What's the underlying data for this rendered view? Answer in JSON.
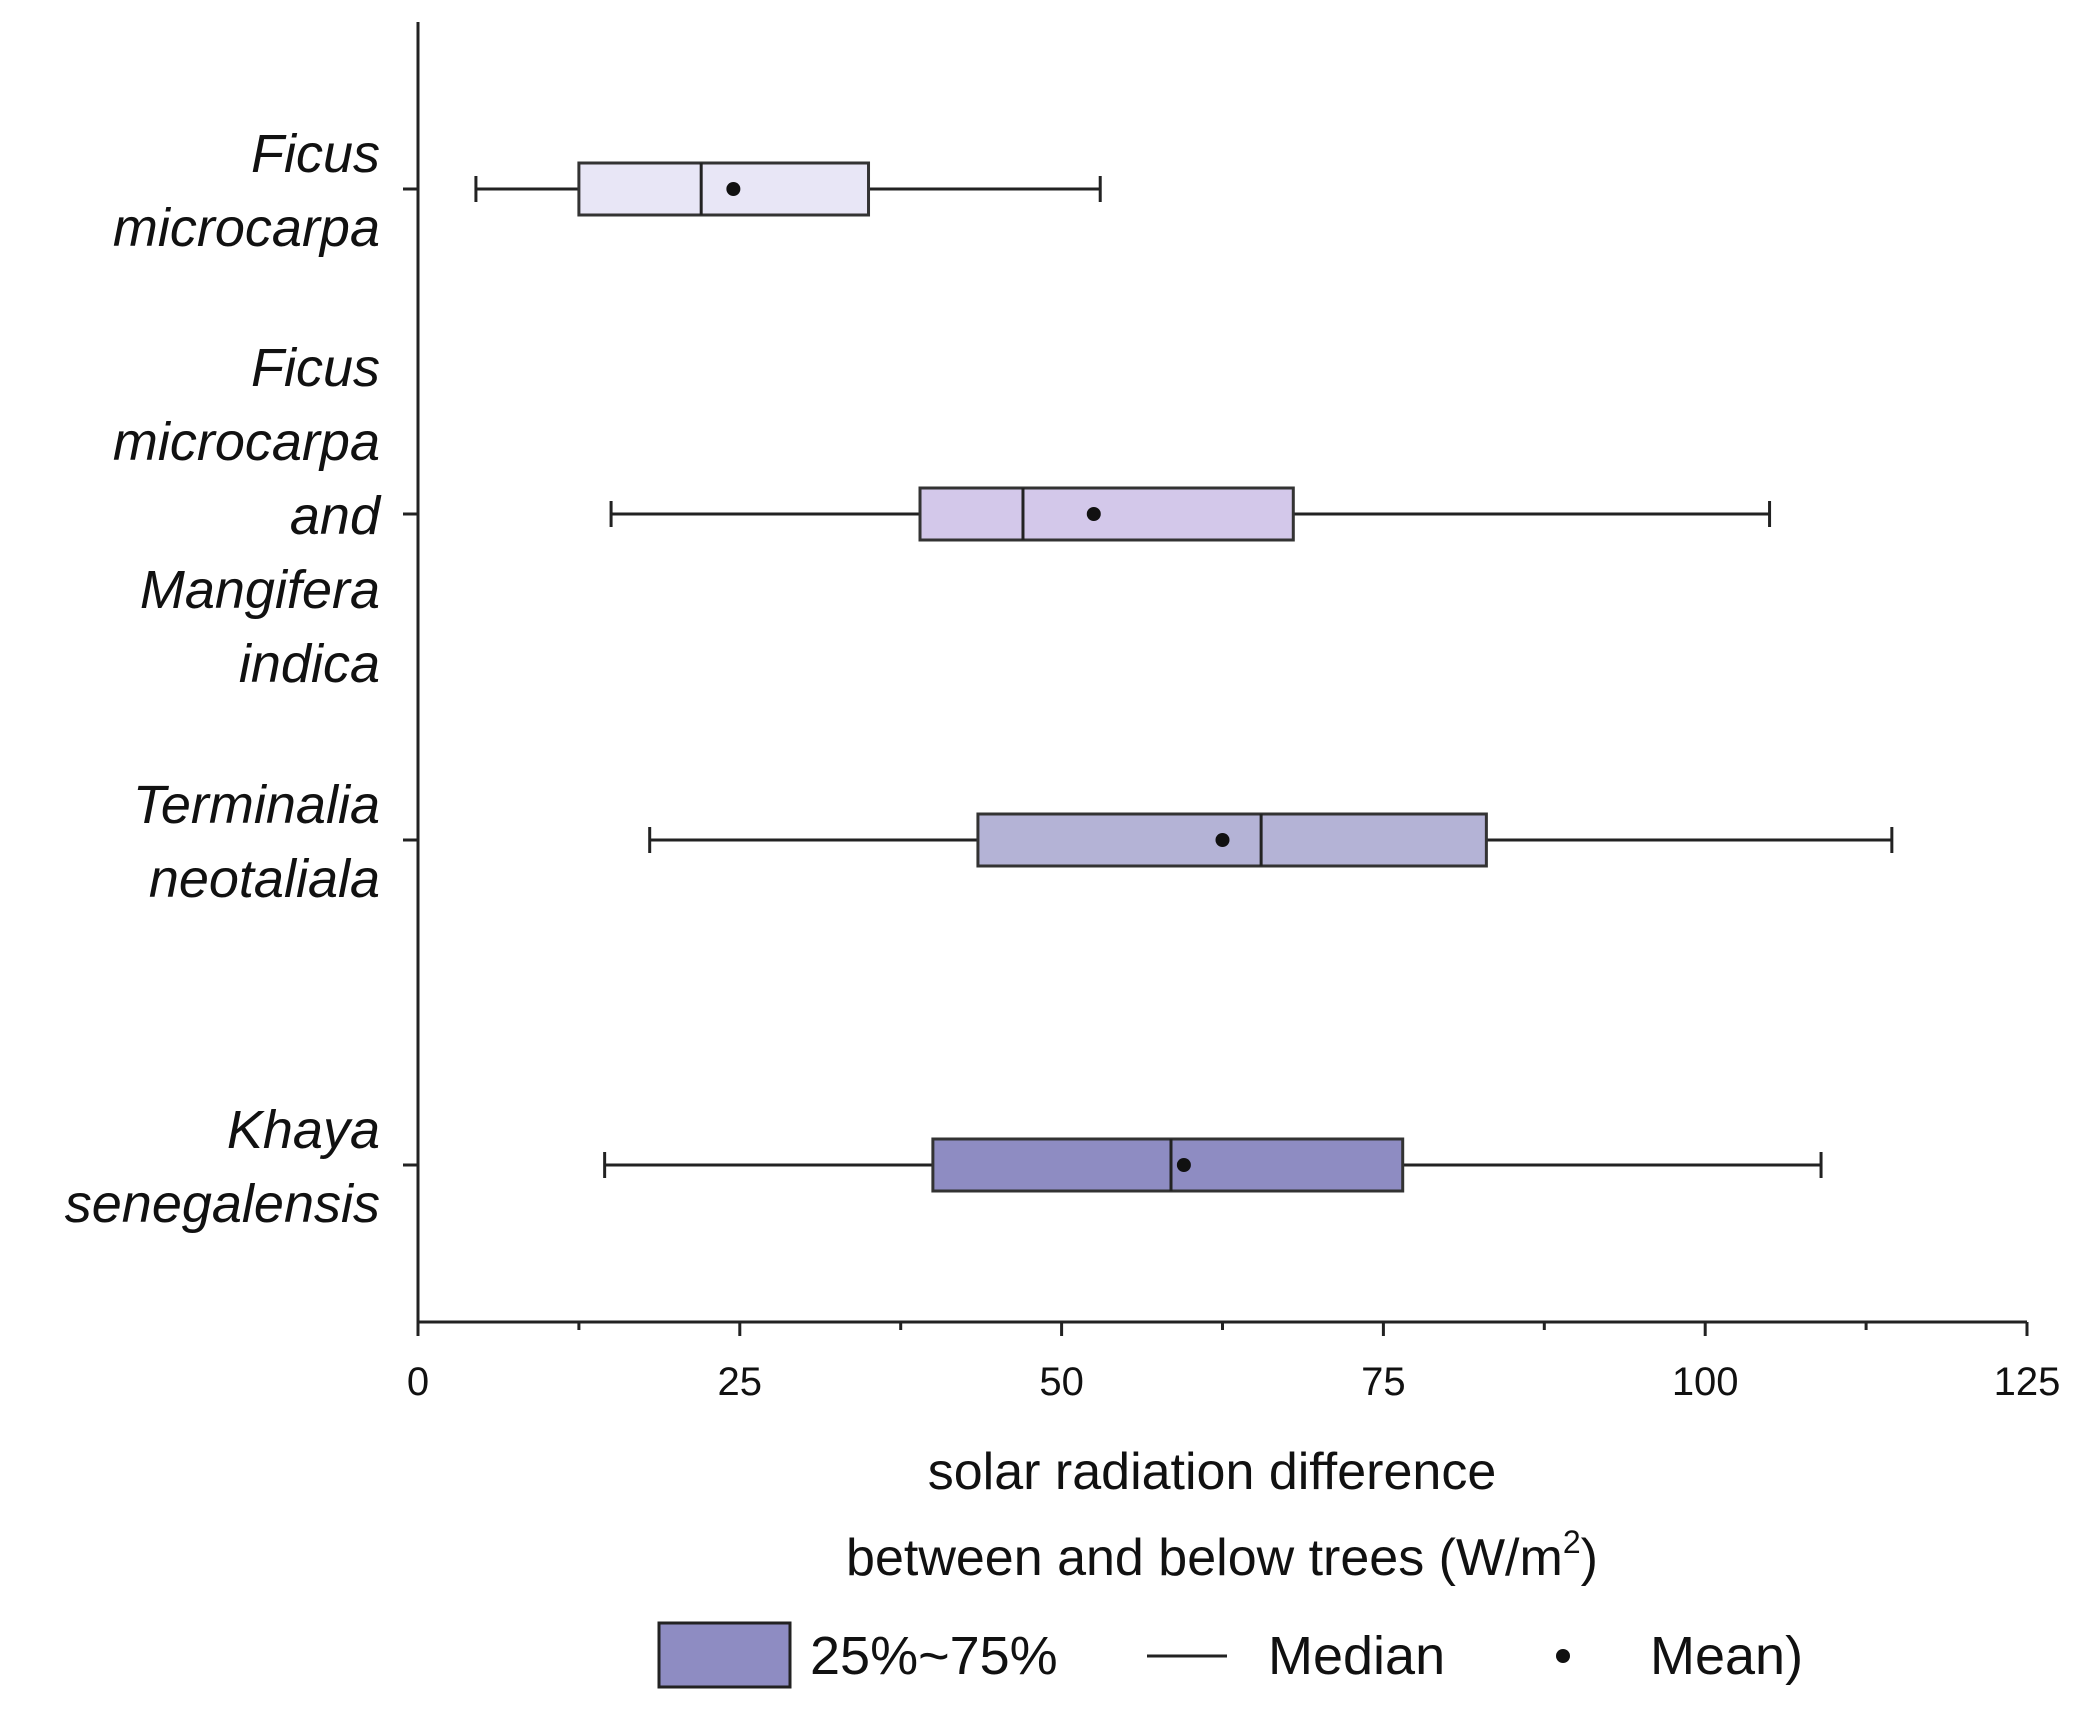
{
  "chart_data": {
    "type": "boxplot",
    "orientation": "horizontal",
    "xlabel_line1": "solar radiation difference",
    "xlabel_line2_prefix": "between and below trees (W/m",
    "xlabel_line2_sup": "2",
    "xlabel_line2_suffix": ")",
    "xlim": [
      0,
      125
    ],
    "xticks": [
      0,
      25,
      50,
      75,
      100,
      125
    ],
    "xtick_labels": [
      "0",
      "25",
      "50",
      "75",
      "100",
      "125"
    ],
    "minor_xticks": [
      12.5,
      37.5,
      62.5,
      87.5,
      112.5
    ],
    "categories": [
      {
        "lines": [
          "Ficus",
          "microcarpa"
        ],
        "whisker_low": 4.5,
        "q1": 12.5,
        "median": 22,
        "q3": 35,
        "whisker_high": 53,
        "mean": 24.5,
        "fill": "#e8e6f6"
      },
      {
        "lines": [
          "Ficus",
          "microcarpa",
          "and",
          "Mangifera",
          "indica"
        ],
        "whisker_low": 15,
        "q1": 39,
        "median": 47,
        "q3": 68,
        "whisker_high": 105,
        "mean": 52.5,
        "fill": "#d3c8ea"
      },
      {
        "lines": [
          "Terminalia",
          "neotaliala"
        ],
        "whisker_low": 18,
        "q1": 43.5,
        "median": 65.5,
        "q3": 83,
        "whisker_high": 114.5,
        "mean": 62.5,
        "fill": "#b4b3d6"
      },
      {
        "lines": [
          "Khaya",
          "senegalensis"
        ],
        "whisker_low": 14.5,
        "q1": 40,
        "median": 58.5,
        "q3": 76.5,
        "whisker_high": 109,
        "mean": 59.5,
        "fill": "#8e8cc2"
      }
    ],
    "legend": {
      "box_label": "25%~75%",
      "median_label": "Median",
      "mean_label": "Mean)",
      "box_color": "#8e8cc2"
    }
  }
}
